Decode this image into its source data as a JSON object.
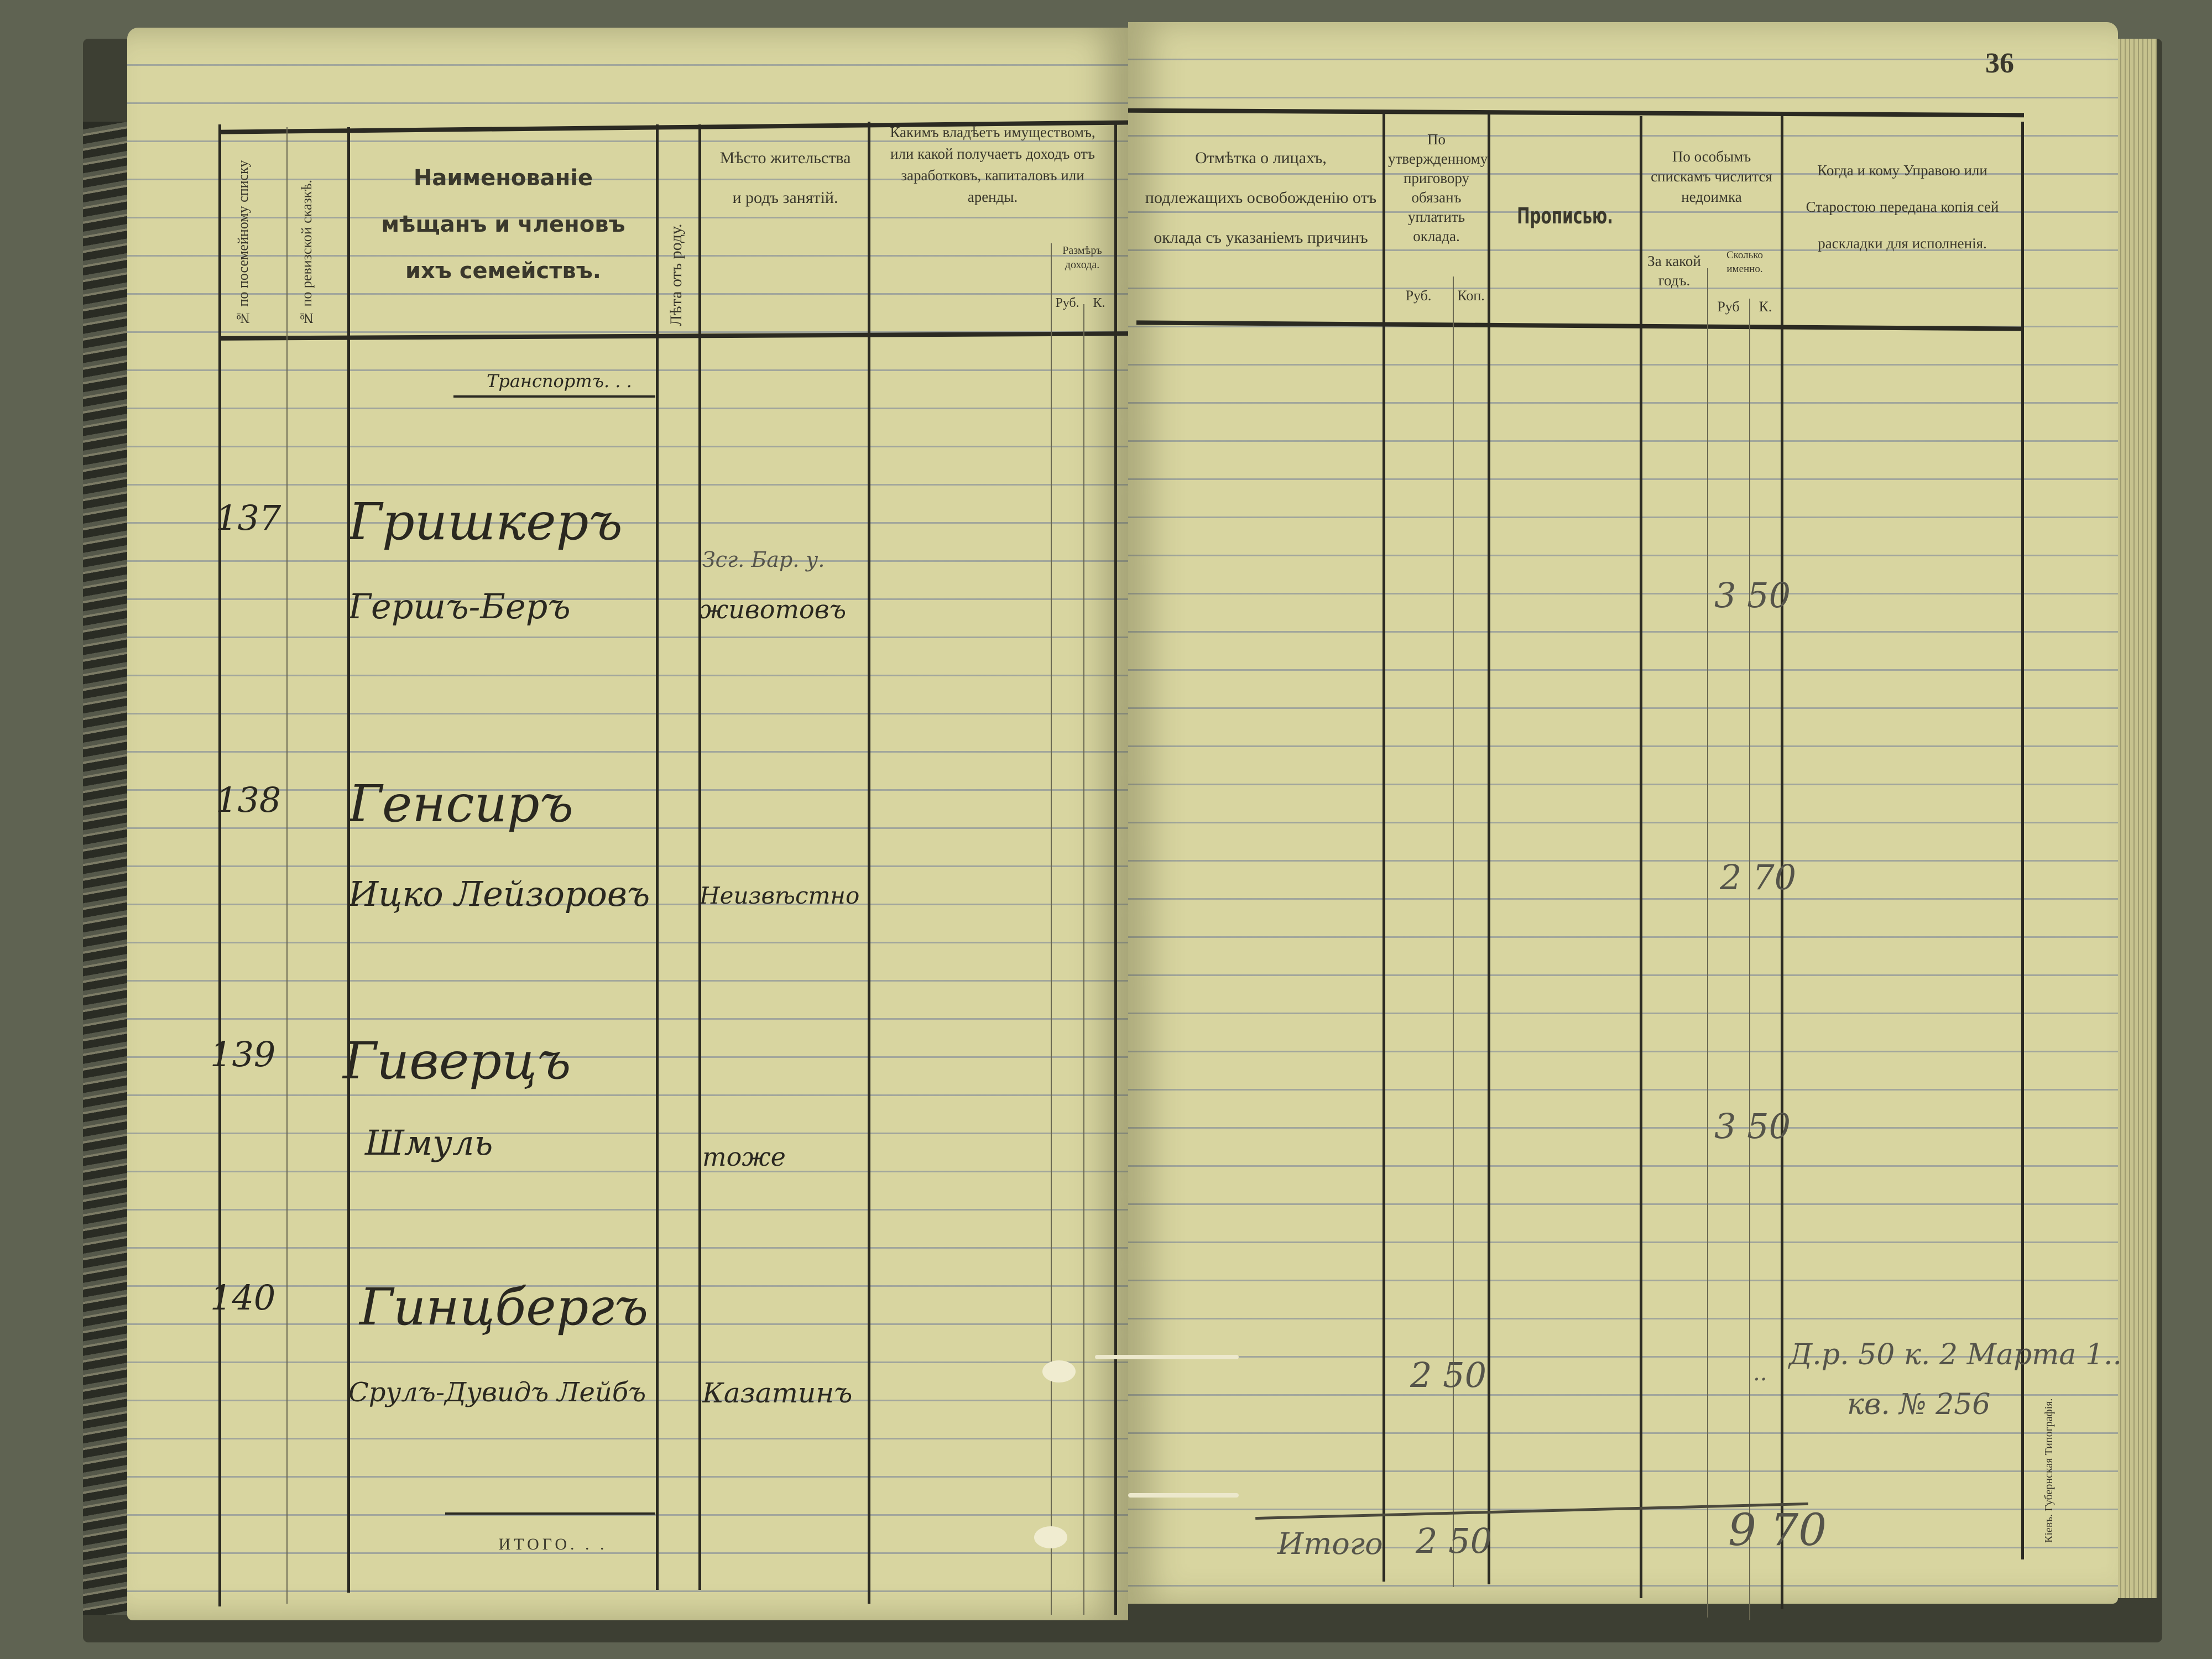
{
  "page_number": "36",
  "left_header": {
    "col1": "№ по посемейному списку",
    "col2": "№ по ревизской сказкѣ.",
    "col3": "Наименованіе мѣщанъ и членовъ ихъ семействъ.",
    "col4": "Лѣта отъ роду.",
    "col5": "Мѣсто жительства и родъ занятій.",
    "col6": "Какимъ владѣетъ имуществомъ, или какой получаетъ доходъ отъ заработковъ, капиталовъ или аренды.",
    "col6_sub": "Размѣръ дохода.",
    "rub": "Руб.",
    "kop": "К."
  },
  "right_header": {
    "col1": "Отмѣтка о лицахъ, подлежащихъ освобожденію отъ оклада съ указаніемъ причинъ",
    "col2": "По утвержденному приговору обязанъ уплатить оклада.",
    "col2_rub": "Руб.",
    "col2_kop": "Коп.",
    "col3": "Прописью.",
    "col4": "По особымъ спискамъ числится недоимка",
    "col4_year": "За какой годъ.",
    "col4_amount": "Сколько именно.",
    "col4_rub": "Руб",
    "col4_kop": "К.",
    "col5": "Когда и кому Управою или Старостою передана копія сей раскладки для исполненія."
  },
  "transport_label": "Транспортъ. . .",
  "entries": [
    {
      "number": "137",
      "surname": "Гришкеръ",
      "given": "Гершъ-Беръ",
      "residence_note": "Зсг. Бар. у.",
      "residence": "животовъ",
      "arrears": "3 50"
    },
    {
      "number": "138",
      "surname": "Генсиръ",
      "given": "Ицко Лейзоровъ",
      "residence": "Неизвѣстно",
      "arrears": "2 70"
    },
    {
      "number": "139",
      "surname": "Гиверцъ",
      "given": "Шмуль",
      "residence": "тоже",
      "arrears": "3 50"
    },
    {
      "number": "140",
      "surname": "Гинцбергъ",
      "given": "Срулъ-Дувидъ Лейбъ",
      "residence": "Казатинъ",
      "assessed": "2 50",
      "arrears_mark": "..",
      "delivery_note_1": "Д.р. 50 к. 2 Марта 1..",
      "delivery_note_2": "кв. № 256"
    }
  ],
  "left_total_label": "ИТОГО. . .",
  "right_total": {
    "label": "Итого",
    "assessed": "2 50",
    "arrears": "9 70"
  },
  "printer_imprint": "Кіевъ. Губернская Типографія."
}
